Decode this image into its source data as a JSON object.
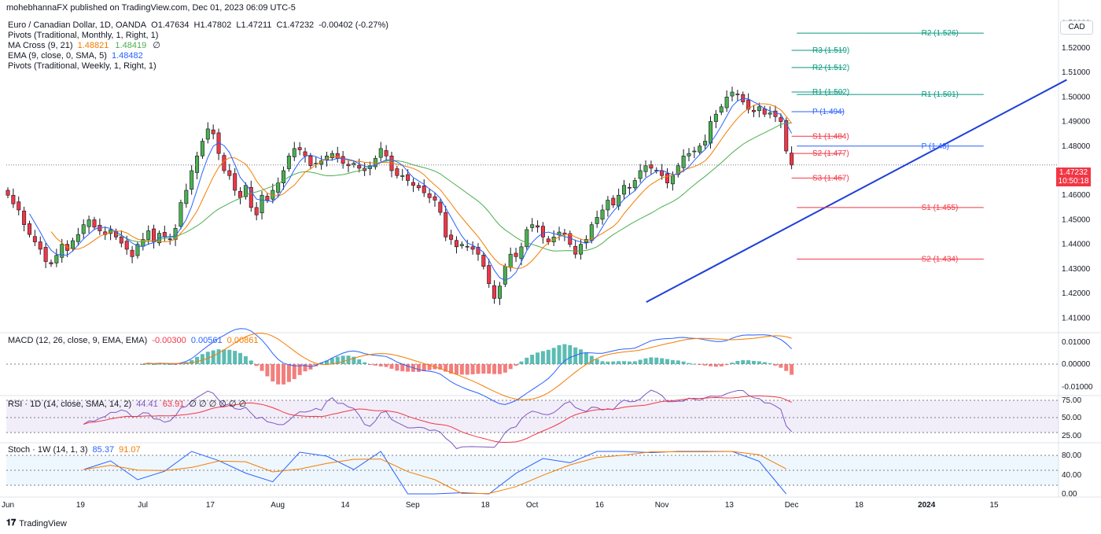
{
  "published": "mohebhannaFX published on TradingView.com, Dec 01, 2023 06:09 UTC-5",
  "currency_button": "CAD",
  "brand": "TradingView",
  "header": {
    "symbol": "Euro / Canadian Dollar, 1D, OANDA",
    "o": "O1.47634",
    "h": "H1.47802",
    "l": "L1.47211",
    "c": "C1.47232",
    "change": "-0.00402 (-0.27%)",
    "indicators": [
      {
        "label": "Pivots (Traditional, Monthly, 1, Right, 1)"
      },
      {
        "label": "MA Cross (9, 21)",
        "v1": "1.48821",
        "v2": "1.48419",
        "v3": "∅"
      },
      {
        "label": "EMA (9, close, 0, SMA, 5)",
        "v1": "1.48482"
      },
      {
        "label": "Pivots (Traditional, Weekly, 1, Right, 1)"
      }
    ]
  },
  "price_tag": {
    "price": "1.47232",
    "countdown": "10:50:18"
  },
  "panes": {
    "macd": {
      "label": "MACD (12, 26, close, 9, EMA, EMA)",
      "v1": "-0.00300",
      "v2": "0.00561",
      "v3": "0.00861"
    },
    "rsi": {
      "label": "RSI · 1D (14, close, SMA, 14, 2)",
      "v1": "44.41",
      "v2": "63.91",
      "rest": "∅ ∅ ∅ ∅ ∅ ∅"
    },
    "stoch": {
      "label": "Stoch · 1W (14, 1, 3)",
      "v1": "85.37",
      "v2": "91.07"
    }
  },
  "colors": {
    "up": "#4caf50",
    "down": "#f23645",
    "ma9": "#f57c00",
    "ma21": "#4caf50",
    "ema": "#2962ff",
    "trend": "#1e3fd8",
    "r_levels": "#089981",
    "s_levels": "#f23645",
    "p_levels": "#2962ff"
  },
  "chart_data": {
    "type": "candlestick",
    "y_ticks": [
      "1.53000",
      "1.52000",
      "1.51000",
      "1.50000",
      "1.49000",
      "1.48000",
      "1.47000",
      "1.46000",
      "1.45000",
      "1.44000",
      "1.43000",
      "1.42000",
      "1.41000"
    ],
    "ylim": [
      1.405,
      1.535
    ],
    "x_ticks": [
      "Jun",
      "19",
      "Jul",
      "17",
      "Aug",
      "14",
      "Sep",
      "18",
      "Oct",
      "16",
      "Nov",
      "13",
      "Dec",
      "18",
      "2024",
      "15"
    ],
    "x_tick_days": [
      0,
      14,
      26,
      39,
      52,
      65,
      78,
      92,
      101,
      114,
      126,
      139,
      151,
      164,
      177,
      190
    ],
    "candles_start": "2023-06-01",
    "closes": [
      1.46,
      1.4565,
      1.454,
      1.448,
      1.444,
      1.441,
      1.438,
      1.433,
      1.432,
      1.4355,
      1.44,
      1.4375,
      1.4415,
      1.444,
      1.448,
      1.45,
      1.447,
      1.4455,
      1.444,
      1.446,
      1.443,
      1.4405,
      1.438,
      1.435,
      1.44,
      1.442,
      1.4455,
      1.441,
      1.4445,
      1.443,
      1.442,
      1.4465,
      1.457,
      1.462,
      1.47,
      1.476,
      1.482,
      1.487,
      1.485,
      1.477,
      1.47,
      1.468,
      1.462,
      1.459,
      1.464,
      1.455,
      1.452,
      1.46,
      1.458,
      1.462,
      1.465,
      1.47,
      1.476,
      1.479,
      1.4785,
      1.476,
      1.472,
      1.473,
      1.474,
      1.476,
      1.477,
      1.475,
      1.473,
      1.472,
      1.473,
      1.471,
      1.47,
      1.472,
      1.475,
      1.479,
      1.476,
      1.47,
      1.468,
      1.468,
      1.466,
      1.464,
      1.463,
      1.461,
      1.459,
      1.458,
      1.453,
      1.443,
      1.442,
      1.439,
      1.44,
      1.439,
      1.438,
      1.436,
      1.431,
      1.424,
      1.418,
      1.423,
      1.431,
      1.436,
      1.435,
      1.439,
      1.446,
      1.448,
      1.447,
      1.443,
      1.441,
      1.443,
      1.445,
      1.444,
      1.44,
      1.436,
      1.44,
      1.442,
      1.448,
      1.451,
      1.454,
      1.458,
      1.456,
      1.46,
      1.464,
      1.463,
      1.466,
      1.47,
      1.472,
      1.471,
      1.47,
      1.468,
      1.465,
      1.468,
      1.472,
      1.476,
      1.477,
      1.478,
      1.48,
      1.482,
      1.49,
      1.493,
      1.496,
      1.5,
      1.502,
      1.501,
      1.498,
      1.495,
      1.494,
      1.496,
      1.493,
      1.4935,
      1.492,
      1.49,
      1.478,
      1.4723
    ]
  },
  "indicators_data": {
    "pivots_monthly": [
      {
        "name": "R2",
        "label": "R2 (1.526)",
        "value": 1.526
      },
      {
        "name": "R1",
        "label": "R1 (1.501)",
        "value": 1.501
      },
      {
        "name": "P",
        "label": "P (1.48)",
        "value": 1.48
      },
      {
        "name": "S1",
        "label": "S1 (1.455)",
        "value": 1.455
      },
      {
        "name": "S2",
        "label": "S2 (1.434)",
        "value": 1.434
      }
    ],
    "pivots_weekly": [
      {
        "name": "R3",
        "label": "R3 (1.519)",
        "value": 1.519
      },
      {
        "name": "R2",
        "label": "R2 (1.512)",
        "value": 1.512
      },
      {
        "name": "R1",
        "label": "R1 (1.502)",
        "value": 1.502
      },
      {
        "name": "P",
        "label": "P (1.494)",
        "value": 1.494
      },
      {
        "name": "S1",
        "label": "S1 (1.484)",
        "value": 1.484
      },
      {
        "name": "S2",
        "label": "S2 (1.477)",
        "value": 1.477
      },
      {
        "name": "S3",
        "label": "S3 (1.467)",
        "value": 1.467
      }
    ],
    "trendline": [
      {
        "date": "2023-10-02",
        "price": 1.4165
      },
      {
        "date": "2023-12-22",
        "price": 1.507
      }
    ],
    "current_price": 1.47232,
    "macd_ticks": [
      "0.01000",
      "0.00000",
      "-0.01000"
    ],
    "rsi_ticks": [
      "75.00",
      "50.00",
      "25.00"
    ],
    "stoch_ticks": [
      "80.00",
      "40.00",
      "0.00"
    ]
  }
}
